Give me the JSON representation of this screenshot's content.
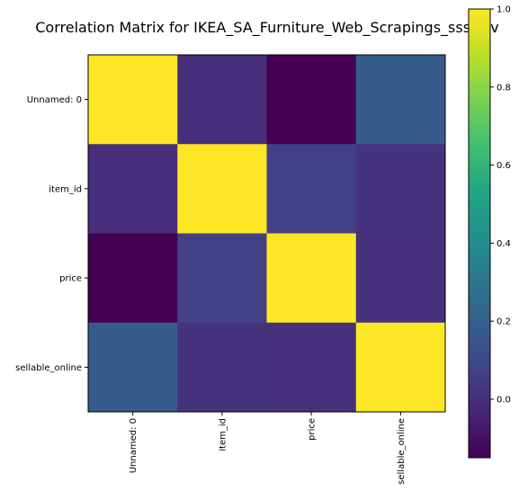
{
  "chart_data": {
    "type": "heatmap",
    "title": "Correlation Matrix for IKEA_SA_Furniture_Web_Scrapings_sss.csv",
    "row_labels": [
      "Unnamed: 0",
      "item_id",
      "price",
      "sellable_online"
    ],
    "col_labels": [
      "Unnamed: 0",
      "item_id",
      "price",
      "sellable_online"
    ],
    "values": [
      [
        1.0,
        0.0,
        -0.15,
        0.18
      ],
      [
        0.0,
        1.0,
        0.07,
        0.02
      ],
      [
        -0.15,
        0.07,
        1.0,
        0.01
      ],
      [
        0.18,
        0.02,
        0.01,
        1.0
      ]
    ],
    "colormap": "viridis",
    "vmin": -0.15,
    "vmax": 1.0,
    "colorbar_ticks": [
      "0.0",
      "0.2",
      "0.4",
      "0.6",
      "0.8",
      "1.0"
    ],
    "colorbar_tick_values": [
      0.0,
      0.2,
      0.4,
      0.6,
      0.8,
      1.0
    ],
    "xlabel": "",
    "ylabel": ""
  }
}
